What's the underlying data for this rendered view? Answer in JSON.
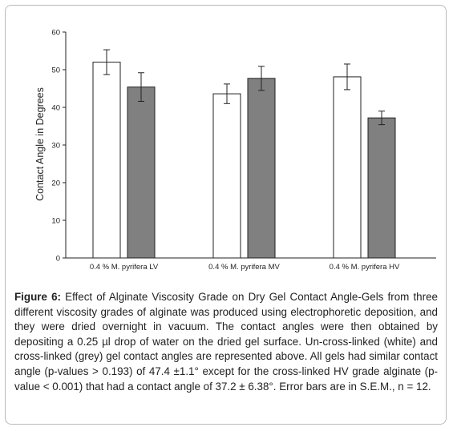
{
  "figure": {
    "label": "Figure 6:",
    "caption": "Effect of Alginate Viscosity Grade on Dry Gel Contact Angle-Gels from three different viscosity grades of alginate was produced using electrophoretic deposition, and they were dried overnight in vacuum. The contact angles were then obtained by depositing a 0.25 µl drop of water on the dried gel surface. Un-cross-linked (white) and cross-linked (grey) gel contact angles are represented above. All gels had similar contact angle (p-values > 0.193) of 47.4 ±1.1° except for the cross-linked HV grade alginate (p-value < 0.001) that had a contact angle of 37.2 ± 6.38°. Error bars are in S.E.M., n = 12."
  },
  "chart_data": {
    "type": "bar",
    "title": "",
    "xlabel": "",
    "ylabel": "Contact Angle in Degrees",
    "ylim": [
      0,
      60
    ],
    "yticks": [
      0,
      10,
      20,
      30,
      40,
      50,
      60
    ],
    "categories": [
      "0.4 % M. pyrifera LV",
      "0.4 % M. pyrifera MV",
      "0.4 % M. pyrifera HV"
    ],
    "series": [
      {
        "color": "#ffffff",
        "values": [
          52.0,
          43.6,
          48.1
        ],
        "errors": [
          3.3,
          2.6,
          3.4
        ]
      },
      {
        "color": "#808080",
        "values": [
          45.4,
          47.7,
          37.2
        ],
        "errors": [
          3.8,
          3.2,
          1.8
        ]
      }
    ],
    "grid": false,
    "legend": "none"
  }
}
